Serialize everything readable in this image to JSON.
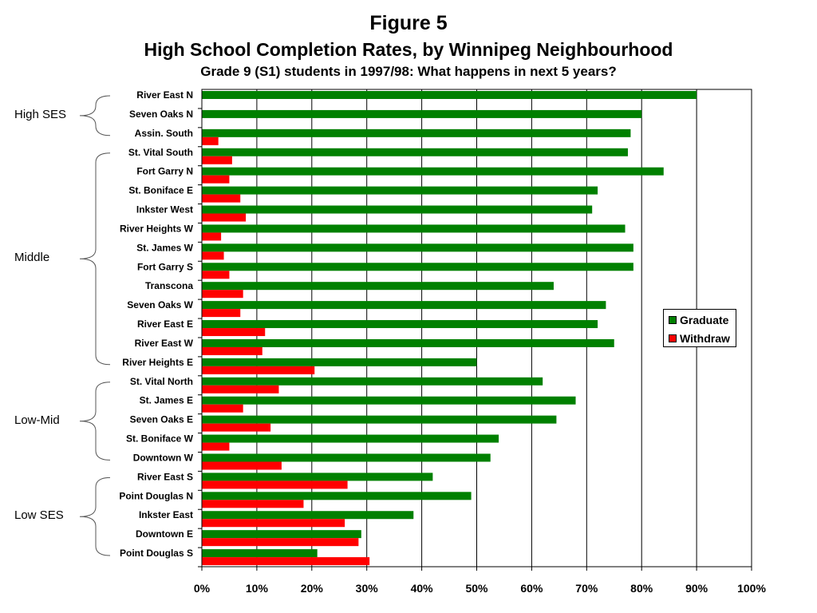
{
  "figure_label": "Figure 5",
  "title": "High School Completion Rates, by Winnipeg Neighbourhood",
  "subtitle": "Grade 9 (S1) students in 1997/98: What happens in next 5 years?",
  "colors": {
    "graduate": "#008000",
    "withdraw": "#ff0000",
    "border": "#000000"
  },
  "groups": [
    {
      "label": "High SES",
      "first": 0,
      "last": 2
    },
    {
      "label": "Middle",
      "first": 3,
      "last": 14
    },
    {
      "label": "Low-Mid",
      "first": 15,
      "last": 19
    },
    {
      "label": "Low SES",
      "first": 20,
      "last": 24
    }
  ],
  "legend": {
    "graduate": "Graduate",
    "withdraw": "Withdraw"
  },
  "chart_data": {
    "type": "bar",
    "orientation": "horizontal",
    "categories": [
      "River East N",
      "Seven Oaks N",
      "Assin. South",
      "St. Vital South",
      "Fort Garry N",
      "St. Boniface E",
      "Inkster West",
      "River Heights W",
      "St. James W",
      "Fort Garry S",
      "Transcona",
      "Seven Oaks W",
      "River East E",
      "River East W",
      "River Heights E",
      "St. Vital North",
      "St. James E",
      "Seven Oaks E",
      "St. Boniface W",
      "Downtown W",
      "River East S",
      "Point Douglas N",
      "Inkster East",
      "Downtown E",
      "Point Douglas S"
    ],
    "series": [
      {
        "name": "Graduate",
        "values": [
          90,
          80,
          78,
          77.5,
          84,
          72,
          71,
          77,
          78.5,
          78.5,
          64,
          73.5,
          72,
          75,
          50,
          62,
          68,
          64.5,
          54,
          52.5,
          42,
          49,
          38.5,
          29,
          21
        ]
      },
      {
        "name": "Withdraw",
        "values": [
          0,
          0,
          3,
          5.5,
          5,
          7,
          8,
          3.5,
          4,
          5,
          7.5,
          7,
          11.5,
          11,
          20.5,
          14,
          7.5,
          12.5,
          5,
          14.5,
          26.5,
          18.5,
          26,
          28.5,
          30.5
        ]
      }
    ],
    "xticks": [
      "0%",
      "10%",
      "20%",
      "30%",
      "40%",
      "50%",
      "60%",
      "70%",
      "80%",
      "90%",
      "100%"
    ],
    "xlim": [
      0,
      100
    ],
    "grid": true,
    "legend_position": "right"
  }
}
